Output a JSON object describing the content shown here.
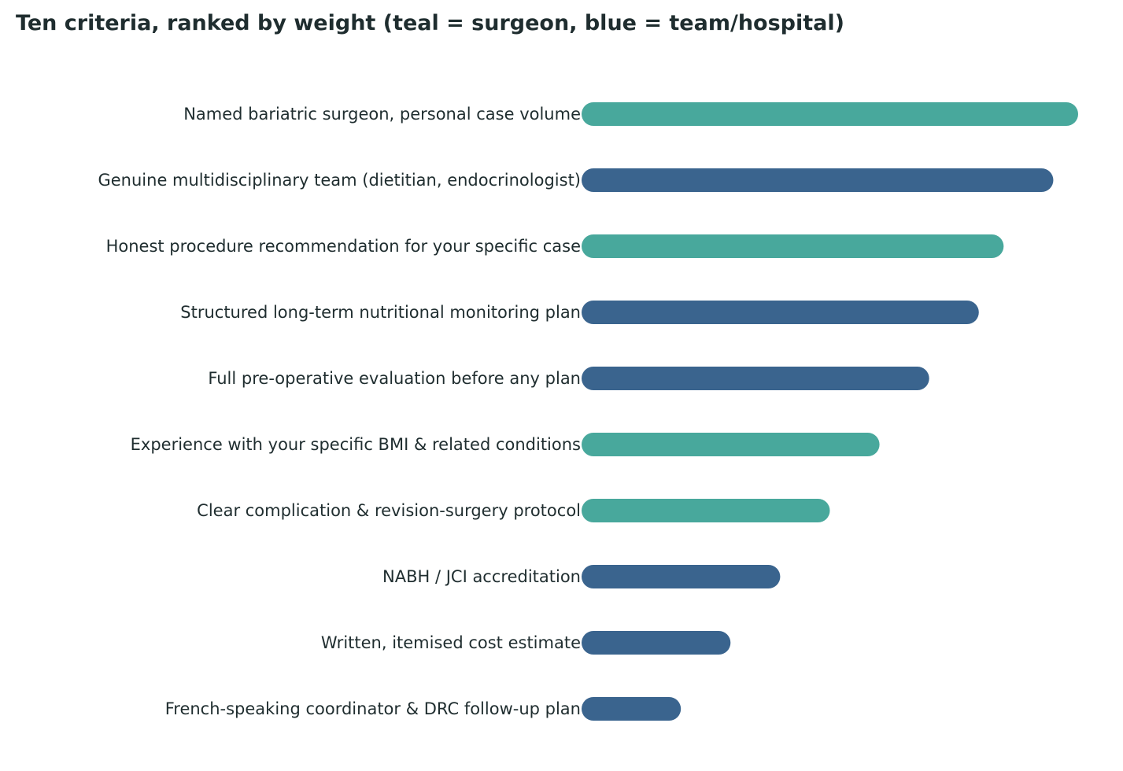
{
  "chart_data": {
    "type": "bar",
    "orientation": "horizontal",
    "title": "Ten criteria, ranked by weight (teal = surgeon, blue = team/hospital)",
    "categories": [
      "Named bariatric surgeon, personal case volume",
      "Genuine multidisciplinary team (dietitian, endocrinologist)",
      "Honest procedure recommendation for your specific case",
      "Structured long-term nutritional monitoring plan",
      "Full pre-operative evaluation before any plan",
      "Experience with your specific BMI & related conditions",
      "Clear complication & revision-surgery protocol",
      "NABH / JCI accreditation",
      "Written, itemised cost estimate",
      "French-speaking coordinator & DRC follow-up plan"
    ],
    "values": [
      10,
      9.5,
      8.5,
      8,
      7,
      6,
      5,
      4,
      3,
      2
    ],
    "groups": [
      "surgeon",
      "team/hospital",
      "surgeon",
      "team/hospital",
      "team/hospital",
      "surgeon",
      "surgeon",
      "team/hospital",
      "team/hospital",
      "team/hospital"
    ],
    "colors": {
      "surgeon": "#48a89c",
      "team/hospital": "#3a648e"
    },
    "xlim": [
      0,
      10
    ],
    "grid": false,
    "legend": "none"
  }
}
